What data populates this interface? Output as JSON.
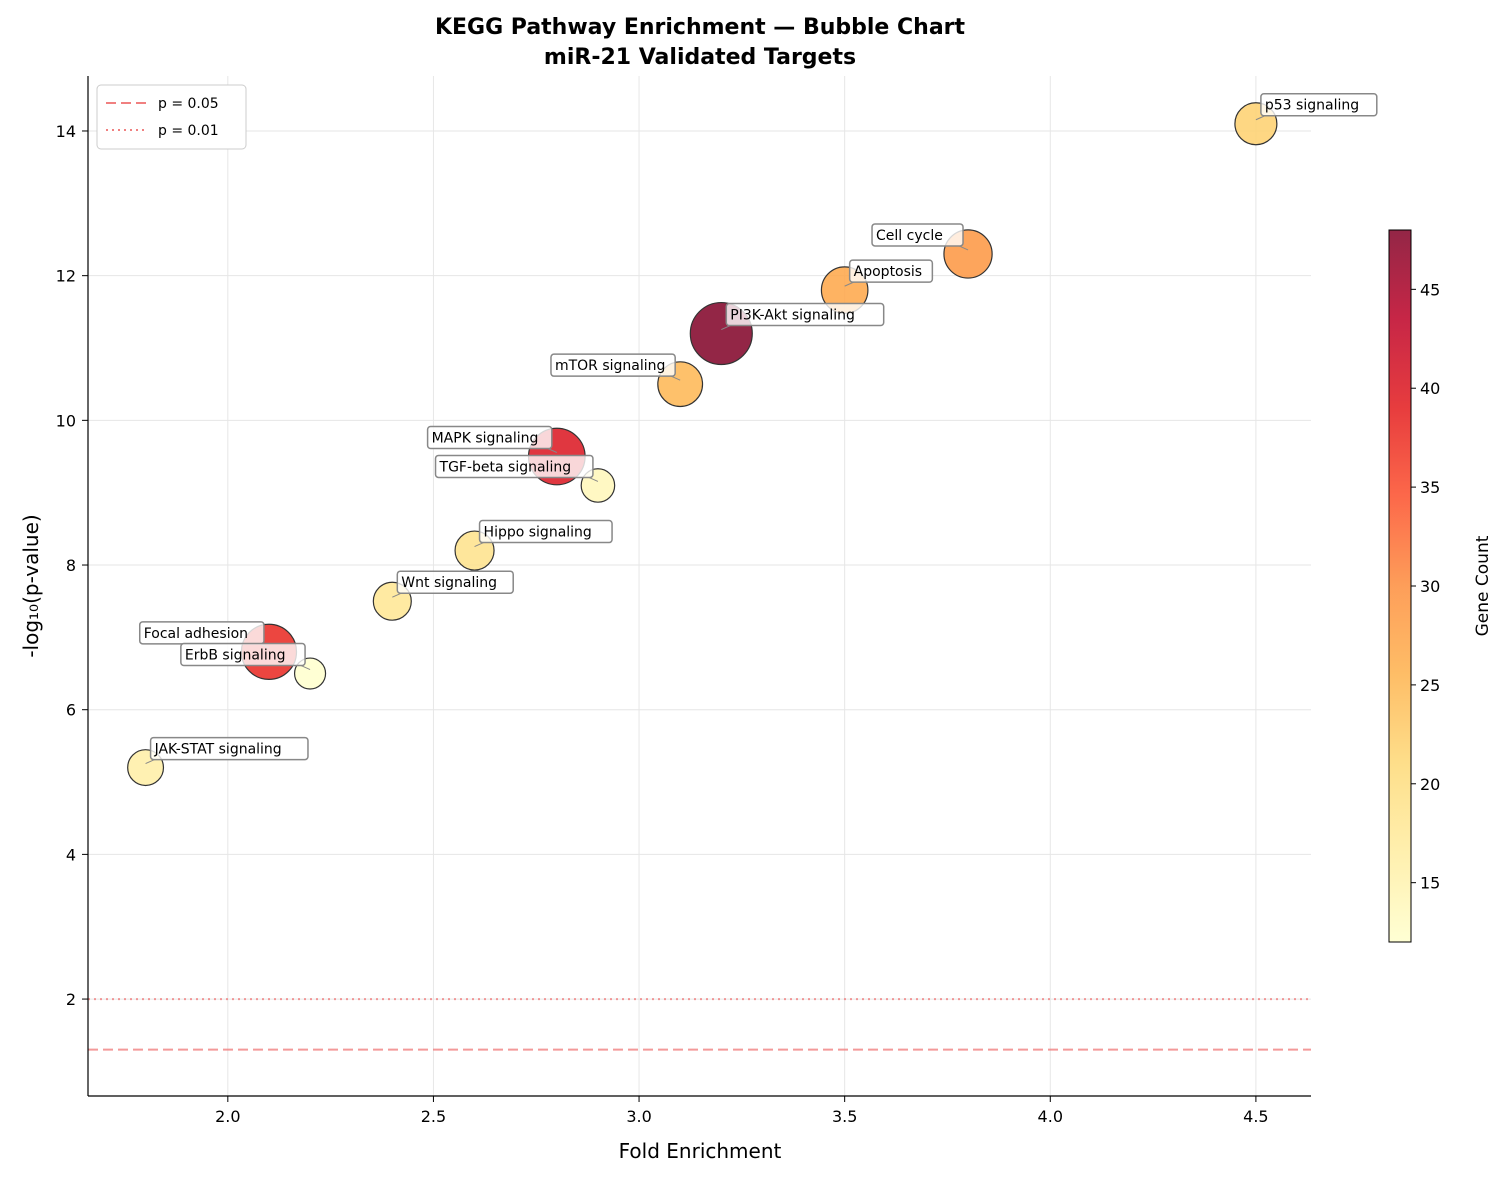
{
  "chart_data": {
    "type": "scatter",
    "title": "KEGG Pathway Enrichment — Bubble Chart",
    "subtitle": "miR-21 Validated Targets",
    "xlabel": "Fold Enrichment",
    "ylabel": "-log₁₀(p-value)",
    "xlim": [
      1.66,
      4.634
    ],
    "ylim": [
      0.66,
      14.76
    ],
    "xticks": [
      "2.0",
      "2.5",
      "3.0",
      "3.5",
      "4.0",
      "4.5"
    ],
    "yticks": [
      "2",
      "4",
      "6",
      "8",
      "10",
      "12",
      "14"
    ],
    "grid": true,
    "colorbar": {
      "label": "Gene Count",
      "range": [
        12,
        48
      ],
      "ticks": [
        "15",
        "20",
        "25",
        "30",
        "35",
        "40",
        "45"
      ],
      "colormap": "YlOrRd"
    },
    "legend": {
      "placement": "top-left",
      "entries": [
        {
          "label": "p = 0.05",
          "value": 1.301,
          "style": "dashed",
          "color": "#f08080"
        },
        {
          "label": "p = 0.01",
          "value": 2.0,
          "style": "dotted",
          "color": "#f08080"
        }
      ]
    },
    "points": [
      {
        "label": "p53 signaling",
        "x": 4.5,
        "y": 14.1,
        "count": 22
      },
      {
        "label": "Cell cycle",
        "x": 3.8,
        "y": 12.3,
        "count": 29
      },
      {
        "label": "Apoptosis",
        "x": 3.5,
        "y": 11.8,
        "count": 27
      },
      {
        "label": "PI3K-Akt signaling",
        "x": 3.2,
        "y": 11.2,
        "count": 48
      },
      {
        "label": "mTOR signaling",
        "x": 3.1,
        "y": 10.5,
        "count": 25
      },
      {
        "label": "MAPK signaling",
        "x": 2.8,
        "y": 9.5,
        "count": 40
      },
      {
        "label": "TGF-beta signaling",
        "x": 2.9,
        "y": 9.1,
        "count": 14
      },
      {
        "label": "Hippo signaling",
        "x": 2.6,
        "y": 8.2,
        "count": 19
      },
      {
        "label": "Wnt signaling",
        "x": 2.4,
        "y": 7.5,
        "count": 18
      },
      {
        "label": "Focal adhesion",
        "x": 2.1,
        "y": 6.8,
        "count": 38
      },
      {
        "label": "ErbB signaling",
        "x": 2.2,
        "y": 6.5,
        "count": 12
      },
      {
        "label": "JAK-STAT signaling",
        "x": 1.8,
        "y": 5.2,
        "count": 16
      }
    ]
  }
}
